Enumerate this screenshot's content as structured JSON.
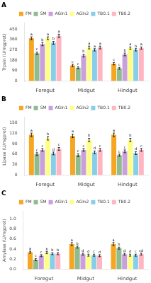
{
  "chart_data": [
    {
      "type": "bar",
      "title": "A",
      "ylabel": "Trpsin (U/mgprot)",
      "categories": [
        "Foregut",
        "Midgut",
        "Hindgut"
      ],
      "ylim": [
        0,
        500
      ],
      "yticks": [
        0,
        90,
        180,
        270,
        360,
        450
      ],
      "grid": false,
      "legend": "top",
      "series": [
        {
          "name": "FM",
          "color": "#F5A623",
          "values": [
            370,
            135,
            150
          ],
          "errors": [
            12,
            10,
            10
          ],
          "letters": [
            "a",
            "c",
            "c"
          ]
        },
        {
          "name": "SM",
          "color": "#8FBC8F",
          "values": [
            240,
            115,
            110
          ],
          "errors": [
            10,
            8,
            8
          ],
          "letters": [
            "c",
            "c",
            "c"
          ]
        },
        {
          "name": "AGln1",
          "color": "#C9A0DC",
          "values": [
            320,
            220,
            230
          ],
          "errors": [
            15,
            12,
            12
          ],
          "letters": [
            "b",
            "b",
            "b"
          ]
        },
        {
          "name": "AGln2",
          "color": "#FFFF88",
          "values": [
            370,
            290,
            285
          ],
          "errors": [
            12,
            12,
            10
          ],
          "letters": [
            "a",
            "a",
            "a"
          ]
        },
        {
          "name": "TB0.1",
          "color": "#87CEEB",
          "values": [
            330,
            270,
            270
          ],
          "errors": [
            12,
            10,
            10
          ],
          "letters": [
            "b",
            "a",
            "b"
          ]
        },
        {
          "name": "TB0.2",
          "color": "#FFB6C1",
          "values": [
            390,
            290,
            285
          ],
          "errors": [
            15,
            12,
            10
          ],
          "letters": [
            "a",
            "a",
            "a"
          ]
        }
      ]
    },
    {
      "type": "bar",
      "title": "B",
      "ylabel": "Lipase (U/mgprot)",
      "categories": [
        "Foregut",
        "Midgut",
        "Hindgut"
      ],
      "ylim": [
        0,
        165
      ],
      "yticks": [
        0,
        30,
        60,
        90,
        120,
        150
      ],
      "grid": false,
      "legend": "top",
      "series": [
        {
          "name": "FM",
          "color": "#F5A623",
          "values": [
            115,
            112,
            115
          ],
          "errors": [
            5,
            5,
            5
          ],
          "letters": [
            "a",
            "a",
            "a"
          ]
        },
        {
          "name": "SM",
          "color": "#8FBC8F",
          "values": [
            60,
            57,
            57
          ],
          "errors": [
            4,
            4,
            3
          ],
          "letters": [
            "c",
            "c",
            "c"
          ]
        },
        {
          "name": "AGln1",
          "color": "#C9A0DC",
          "values": [
            72,
            72,
            68
          ],
          "errors": [
            4,
            4,
            4
          ],
          "letters": [
            "c",
            "c",
            "c"
          ]
        },
        {
          "name": "AGln2",
          "color": "#FFFF88",
          "values": [
            105,
            100,
            100
          ],
          "errors": [
            5,
            5,
            5
          ],
          "letters": [
            "b",
            "b",
            "b"
          ]
        },
        {
          "name": "TB0.1",
          "color": "#87CEEB",
          "values": [
            62,
            65,
            63
          ],
          "errors": [
            4,
            4,
            4
          ],
          "letters": [
            "d",
            "d",
            "d"
          ]
        },
        {
          "name": "TB0.2",
          "color": "#FFB6C1",
          "values": [
            75,
            72,
            72
          ],
          "errors": [
            4,
            4,
            4
          ],
          "letters": [
            "c",
            "c",
            "c"
          ]
        }
      ]
    },
    {
      "type": "bar",
      "title": "C",
      "ylabel": "Amylase (U/mgprot)",
      "categories": [
        "Foregut",
        "Midgut",
        "Hindgut"
      ],
      "ylim": [
        0,
        1.15
      ],
      "yticks": [
        {
          "value": 0,
          "label": "0.0"
        },
        {
          "value": 0.2,
          "label": "0.2"
        },
        {
          "value": 0.4,
          "label": "0.4"
        },
        {
          "value": 0.6,
          "label": "0.6"
        },
        {
          "value": 0.8,
          "label": "0.8"
        },
        {
          "value": 1.0,
          "label": "1.0"
        }
      ],
      "grid": false,
      "legend": "top",
      "series": [
        {
          "name": "FM",
          "color": "#F5A623",
          "values": [
            0.34,
            0.5,
            0.5
          ],
          "errors": [
            0.02,
            0.03,
            0.03
          ],
          "letters": [
            "a",
            "a",
            "a"
          ]
        },
        {
          "name": "SM",
          "color": "#8FBC8F",
          "values": [
            0.19,
            0.44,
            0.42
          ],
          "errors": [
            0.02,
            0.02,
            0.02
          ],
          "letters": [
            "c",
            "b",
            "b"
          ]
        },
        {
          "name": "AGln1",
          "color": "#C9A0DC",
          "values": [
            0.27,
            0.3,
            0.3
          ],
          "errors": [
            0.02,
            0.02,
            0.02
          ],
          "letters": [
            "c",
            "d",
            "d"
          ]
        },
        {
          "name": "AGln2",
          "color": "#FFFF88",
          "values": [
            0.33,
            0.28,
            0.28
          ],
          "errors": [
            0.02,
            0.02,
            0.02
          ],
          "letters": [
            "b",
            "d",
            "d"
          ]
        },
        {
          "name": "TB0.1",
          "color": "#87CEEB",
          "values": [
            0.31,
            0.28,
            0.28
          ],
          "errors": [
            0.02,
            0.02,
            0.02
          ],
          "letters": [
            "b",
            "c",
            "c"
          ]
        },
        {
          "name": "TB0.2",
          "color": "#FFB6C1",
          "values": [
            0.31,
            0.27,
            0.3
          ],
          "errors": [
            0.02,
            0.02,
            0.02
          ],
          "letters": [
            "b",
            "d",
            "cd"
          ]
        }
      ]
    }
  ]
}
